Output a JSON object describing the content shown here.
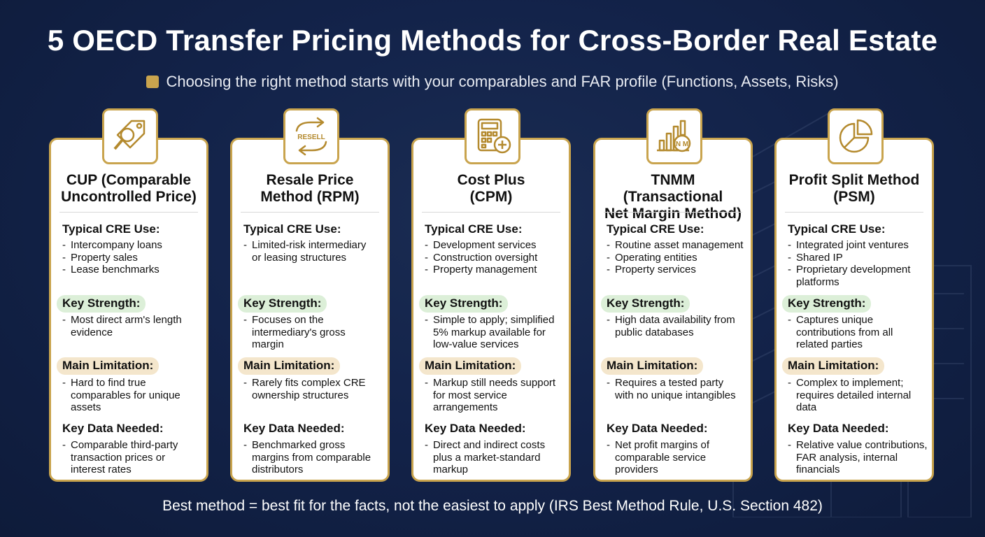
{
  "title": "5 OECD Transfer Pricing Methods for Cross-Border Real Estate",
  "subtitle": "Choosing the right method starts with your comparables and FAR profile (Functions, Assets, Risks)",
  "labels": {
    "use": "Typical CRE Use:",
    "strength": "Key Strength:",
    "limitation": "Main Limitation:",
    "data": "Key Data Needed:"
  },
  "colors": {
    "background": "#13234a",
    "gold": "#c9a44e",
    "strength_pill": "#dcefd8",
    "limitation_pill": "#f4e6cc"
  },
  "methods": [
    {
      "icon": "price-tag-magnifier-icon",
      "title_line1": "CUP (Comparable",
      "title_line2": "Uncontrolled Price)",
      "uses": [
        "Intercompany loans",
        "Property sales",
        "Lease benchmarks"
      ],
      "strength": [
        "Most direct arm's length evidence"
      ],
      "limitation": [
        "Hard to find true comparables for unique assets"
      ],
      "data": [
        "Comparable third-party transaction prices or interest rates"
      ]
    },
    {
      "icon": "resell-arrows-icon",
      "icon_text": "RESELL",
      "title_line1": "Resale Price",
      "title_line2": "Method (RPM)",
      "uses": [
        "Limited-risk intermediary or leasing structures"
      ],
      "strength": [
        "Focuses on the intermediary's gross margin"
      ],
      "limitation": [
        "Rarely fits complex CRE ownership structures"
      ],
      "data": [
        "Benchmarked gross margins from comparable distributors"
      ]
    },
    {
      "icon": "calculator-plus-icon",
      "title_line1": "Cost Plus",
      "title_line2": "(CPM)",
      "uses": [
        "Development services",
        "Construction oversight",
        "Property management"
      ],
      "strength": [
        "Simple to apply; simplified 5% markup available for low-value services"
      ],
      "limitation": [
        "Markup still needs support for most service arrangements"
      ],
      "data": [
        "Direct and indirect costs plus a market-standard markup"
      ]
    },
    {
      "icon": "bar-chart-coin-icon",
      "icon_text": "N M",
      "title_line1": "TNMM (Transactional",
      "title_line2": "Net Margin Method)",
      "uses": [
        "Routine asset management",
        "Operating entities",
        "Property services"
      ],
      "strength": [
        "High data availability from public databases"
      ],
      "limitation": [
        "Requires a tested party with no unique intangibles"
      ],
      "data": [
        "Net profit margins of comparable service providers"
      ]
    },
    {
      "icon": "pie-chart-icon",
      "title_line1": "Profit Split Method",
      "title_line2": "(PSM)",
      "uses": [
        "Integrated joint ventures",
        "Shared IP",
        "Proprietary development platforms"
      ],
      "strength": [
        "Captures unique contributions from all related parties"
      ],
      "limitation": [
        "Complex to implement; requires detailed internal data"
      ],
      "data": [
        "Relative value contributions, FAR analysis, internal financials"
      ]
    }
  ],
  "footer": "Best method = best fit for the facts, not the easiest to apply (IRS Best Method Rule, U.S. Section 482)"
}
